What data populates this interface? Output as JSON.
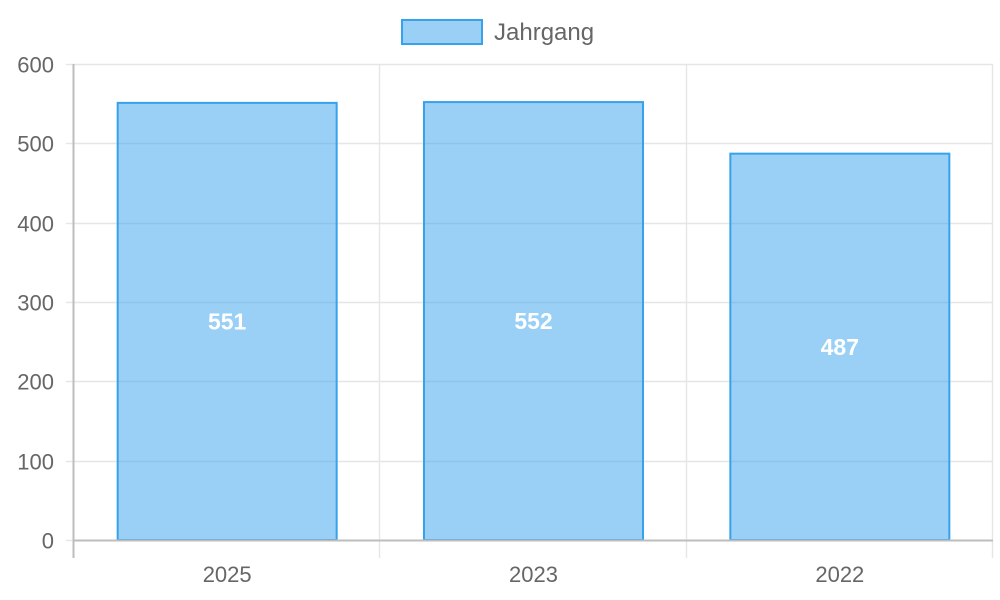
{
  "chart_data": {
    "type": "bar",
    "categories": [
      "2025",
      "2023",
      "2022"
    ],
    "series": [
      {
        "name": "Jahrgang",
        "values": [
          551,
          552,
          487
        ]
      }
    ],
    "ylim": [
      0,
      600
    ],
    "yticks": [
      0,
      100,
      200,
      300,
      400,
      500,
      600
    ],
    "grid": true,
    "legend_position": "top-center",
    "data_labels": true
  },
  "colors": {
    "bar_fill": "rgba(54,162,235,0.5)",
    "bar_border": "#36a2eb",
    "grid": "#e6e6e6",
    "axis": "#bdbdbd",
    "text": "#666666",
    "value_label": "#ffffff"
  }
}
